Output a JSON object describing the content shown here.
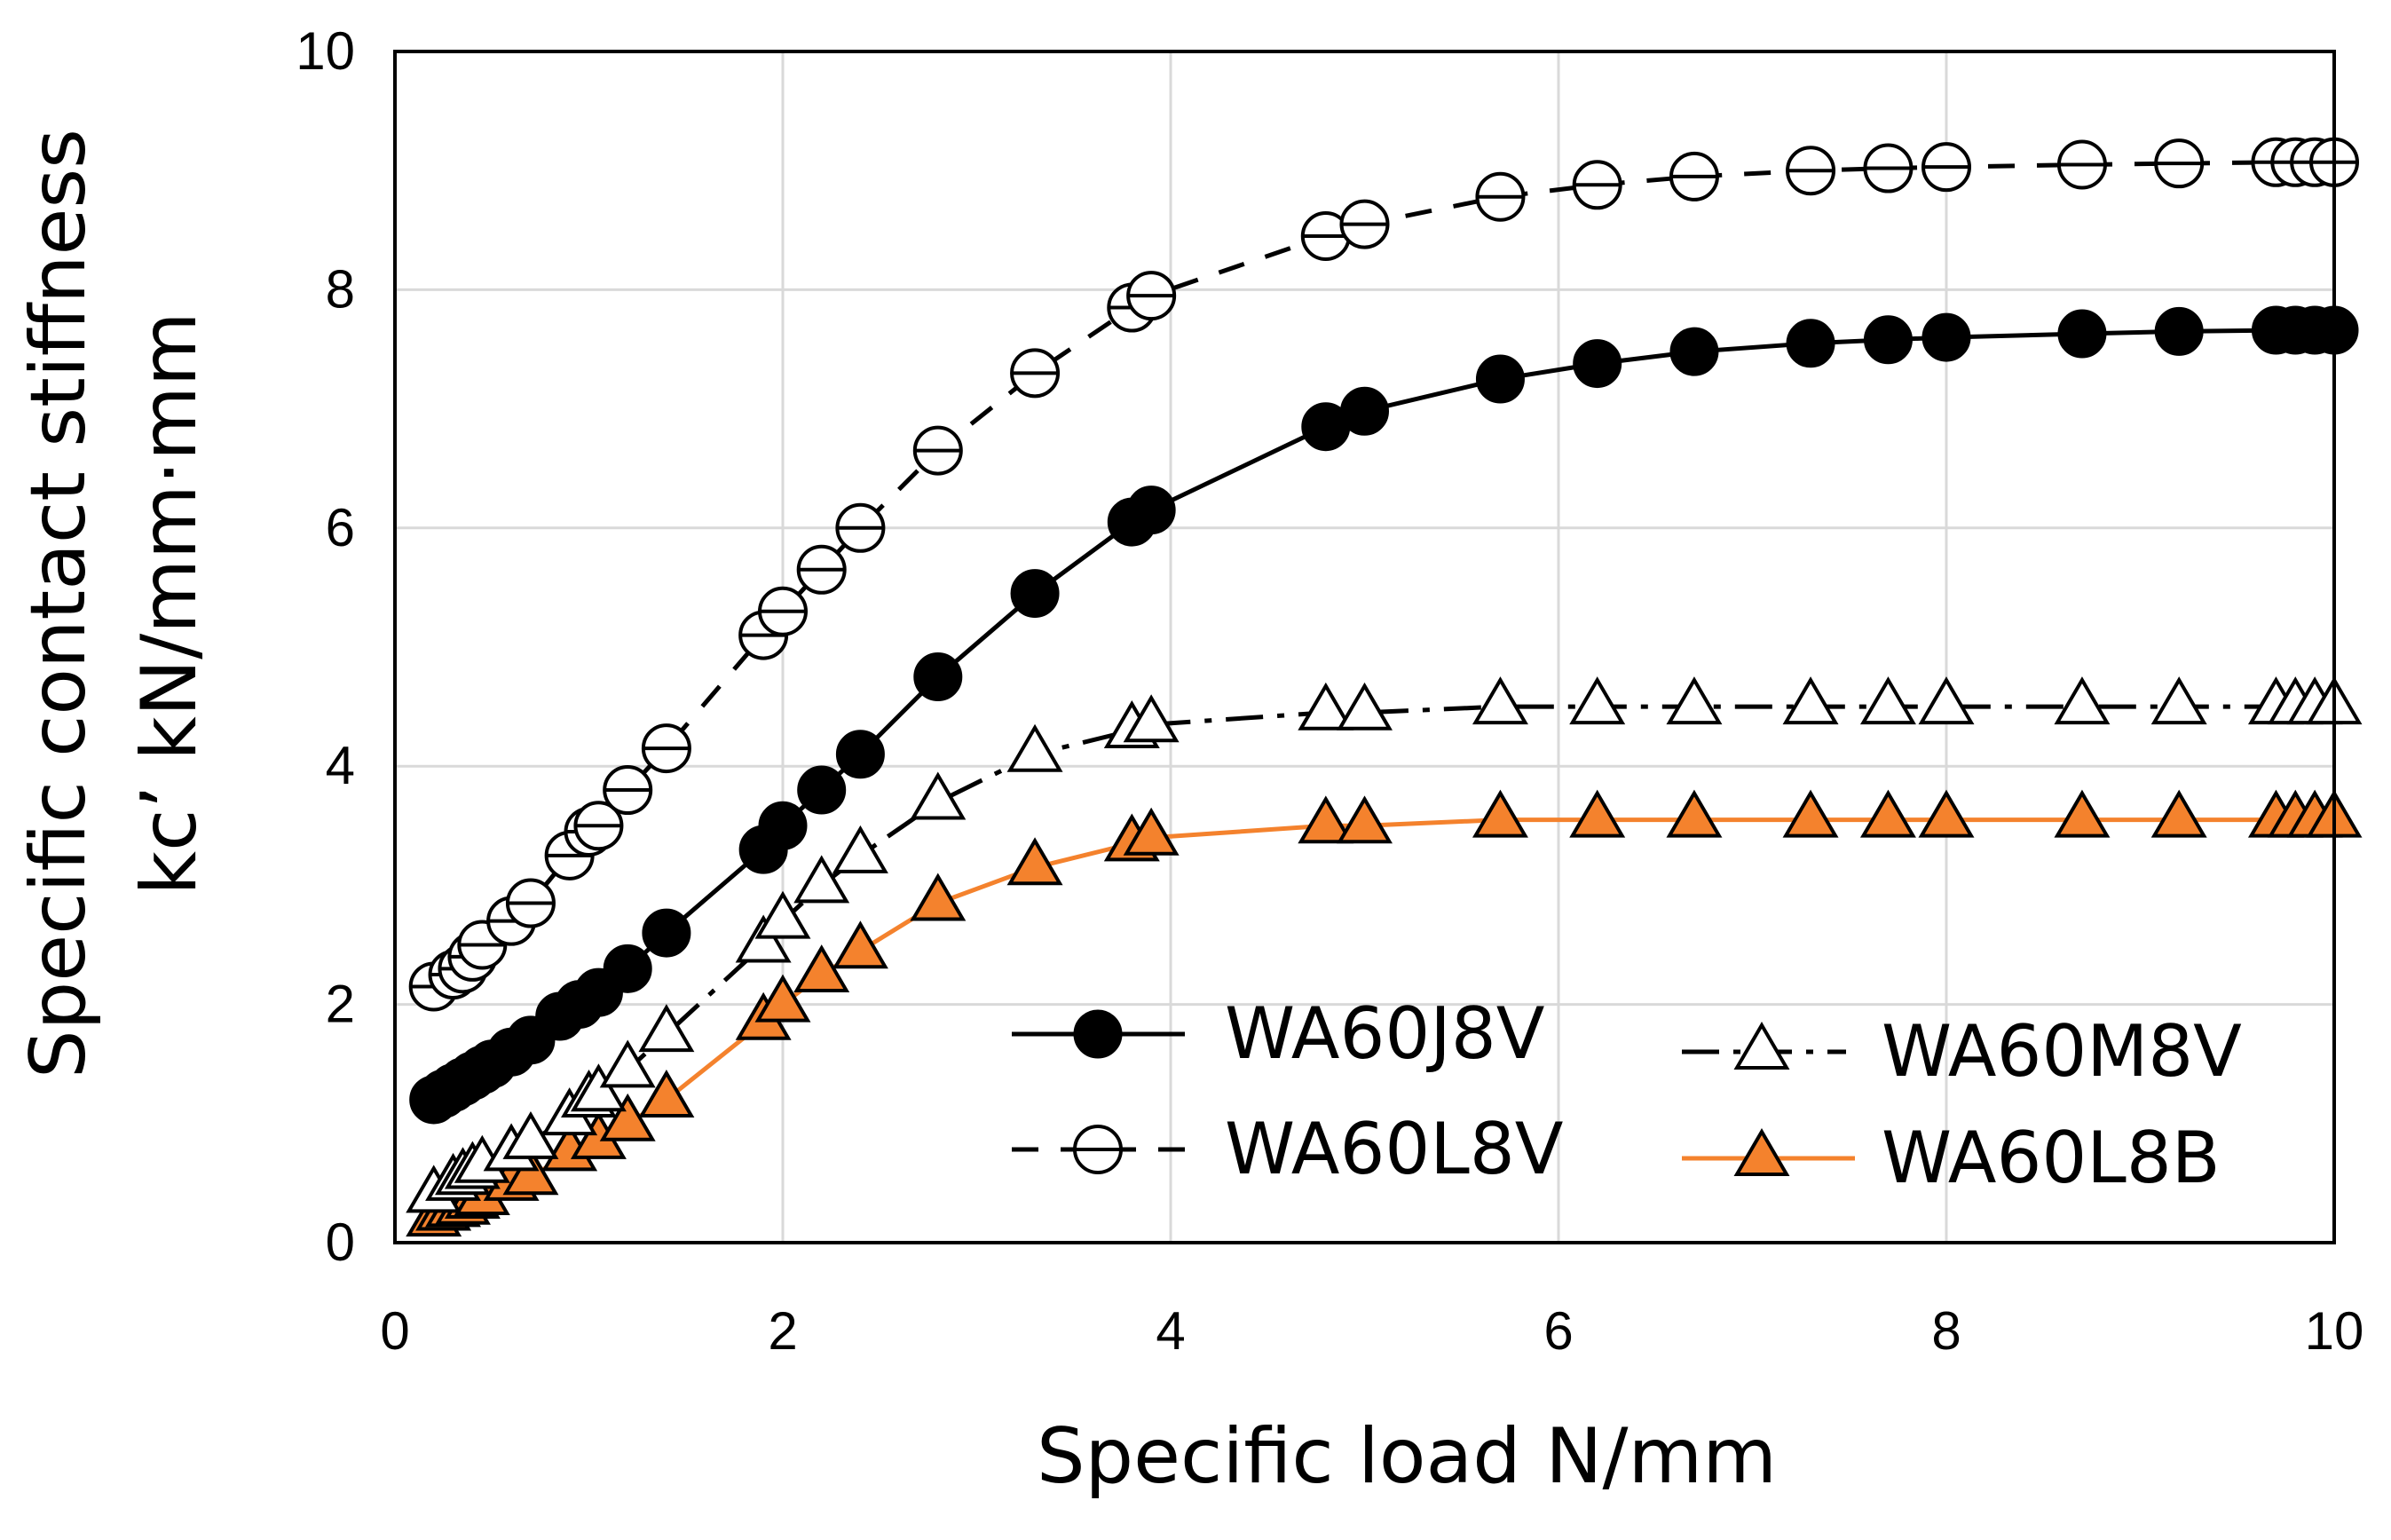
{
  "chart_data": {
    "type": "line",
    "title": "",
    "xlabel": "Specific load N/mm",
    "ylabel_lines": [
      "Specific contact stiffness",
      "kc’ kN/mm·mm"
    ],
    "xlim": [
      0,
      10
    ],
    "ylim": [
      0,
      10
    ],
    "xticks": [
      0,
      2,
      4,
      6,
      8,
      10
    ],
    "yticks": [
      0,
      2,
      4,
      6,
      8,
      10
    ],
    "xtick_labels": [
      "0",
      "2",
      "4",
      "6",
      "8",
      "10"
    ],
    "ytick_labels": [
      "0",
      "2",
      "4",
      "6",
      "8",
      "10"
    ],
    "grid": true,
    "legend_position": "bottom-right",
    "series": [
      {
        "name": "WA60J8V",
        "marker": "filled-circle",
        "line": "solid",
        "color": "#000000",
        "fill": "#000000",
        "x": [
          0.2,
          0.25,
          0.3,
          0.35,
          0.4,
          0.45,
          0.5,
          0.6,
          0.7,
          0.85,
          0.95,
          1.05,
          1.2,
          1.4,
          1.9,
          2.0,
          2.2,
          2.4,
          2.8,
          3.3,
          3.8,
          3.9,
          4.8,
          5.0,
          5.7,
          6.2,
          6.7,
          7.3,
          7.7,
          8.0,
          8.7,
          9.2,
          9.7,
          9.8,
          9.9,
          10.0
        ],
        "y": [
          1.2,
          1.25,
          1.3,
          1.35,
          1.4,
          1.45,
          1.5,
          1.6,
          1.7,
          1.9,
          2.0,
          2.1,
          2.3,
          2.6,
          3.3,
          3.5,
          3.8,
          4.1,
          4.75,
          5.45,
          6.05,
          6.15,
          6.85,
          6.98,
          7.25,
          7.38,
          7.48,
          7.55,
          7.58,
          7.6,
          7.63,
          7.65,
          7.66,
          7.66,
          7.66,
          7.66
        ]
      },
      {
        "name": "WA60L8V",
        "marker": "theta-circle",
        "line": "dashed",
        "color": "#000000",
        "fill": "#ffffff",
        "x": [
          0.2,
          0.3,
          0.35,
          0.4,
          0.45,
          0.6,
          0.7,
          0.9,
          1.0,
          1.05,
          1.2,
          1.4,
          1.9,
          2.0,
          2.2,
          2.4,
          2.8,
          3.3,
          3.8,
          3.9,
          4.8,
          5.0,
          5.7,
          6.2,
          6.7,
          7.3,
          7.7,
          8.0,
          8.7,
          9.2,
          9.7,
          9.8,
          9.9,
          10.0
        ],
        "y": [
          2.15,
          2.25,
          2.3,
          2.4,
          2.5,
          2.7,
          2.85,
          3.25,
          3.45,
          3.5,
          3.8,
          4.15,
          5.1,
          5.3,
          5.65,
          6.0,
          6.65,
          7.3,
          7.85,
          7.95,
          8.45,
          8.55,
          8.78,
          8.88,
          8.95,
          9.0,
          9.02,
          9.03,
          9.05,
          9.06,
          9.07,
          9.07,
          9.07,
          9.07
        ]
      },
      {
        "name": "WA60M8V",
        "marker": "open-triangle",
        "line": "dash-dot",
        "color": "#000000",
        "fill": "#ffffff",
        "x": [
          0.2,
          0.3,
          0.35,
          0.4,
          0.45,
          0.6,
          0.7,
          0.9,
          1.0,
          1.05,
          1.2,
          1.4,
          1.9,
          2.0,
          2.2,
          2.4,
          2.8,
          3.3,
          3.8,
          3.9,
          4.8,
          5.0,
          5.7,
          6.2,
          6.7,
          7.3,
          7.7,
          8.0,
          8.7,
          9.2,
          9.7,
          9.8,
          9.9,
          10.0
        ],
        "y": [
          0.4,
          0.5,
          0.55,
          0.6,
          0.65,
          0.75,
          0.85,
          1.05,
          1.2,
          1.25,
          1.45,
          1.75,
          2.5,
          2.7,
          3.0,
          3.25,
          3.7,
          4.1,
          4.3,
          4.35,
          4.45,
          4.45,
          4.5,
          4.5,
          4.5,
          4.5,
          4.5,
          4.5,
          4.5,
          4.5,
          4.5,
          4.5,
          4.5,
          4.5
        ]
      },
      {
        "name": "WA60L8B",
        "marker": "orange-triangle",
        "line": "solid",
        "color": "#f4822d",
        "fill": "#f4822d",
        "x": [
          0.2,
          0.25,
          0.3,
          0.35,
          0.4,
          0.45,
          0.6,
          0.7,
          0.9,
          1.05,
          1.2,
          1.4,
          1.9,
          2.0,
          2.2,
          2.4,
          2.8,
          3.3,
          3.8,
          3.9,
          4.8,
          5.0,
          5.7,
          6.2,
          6.7,
          7.3,
          7.7,
          8.0,
          8.7,
          9.2,
          9.7,
          9.8,
          9.9,
          10.0
        ],
        "y": [
          0.2,
          0.25,
          0.28,
          0.3,
          0.35,
          0.38,
          0.5,
          0.55,
          0.75,
          0.85,
          1.0,
          1.2,
          1.85,
          2.0,
          2.25,
          2.45,
          2.85,
          3.15,
          3.35,
          3.4,
          3.5,
          3.5,
          3.55,
          3.55,
          3.55,
          3.55,
          3.55,
          3.55,
          3.55,
          3.55,
          3.55,
          3.55,
          3.55,
          3.55
        ]
      }
    ]
  }
}
